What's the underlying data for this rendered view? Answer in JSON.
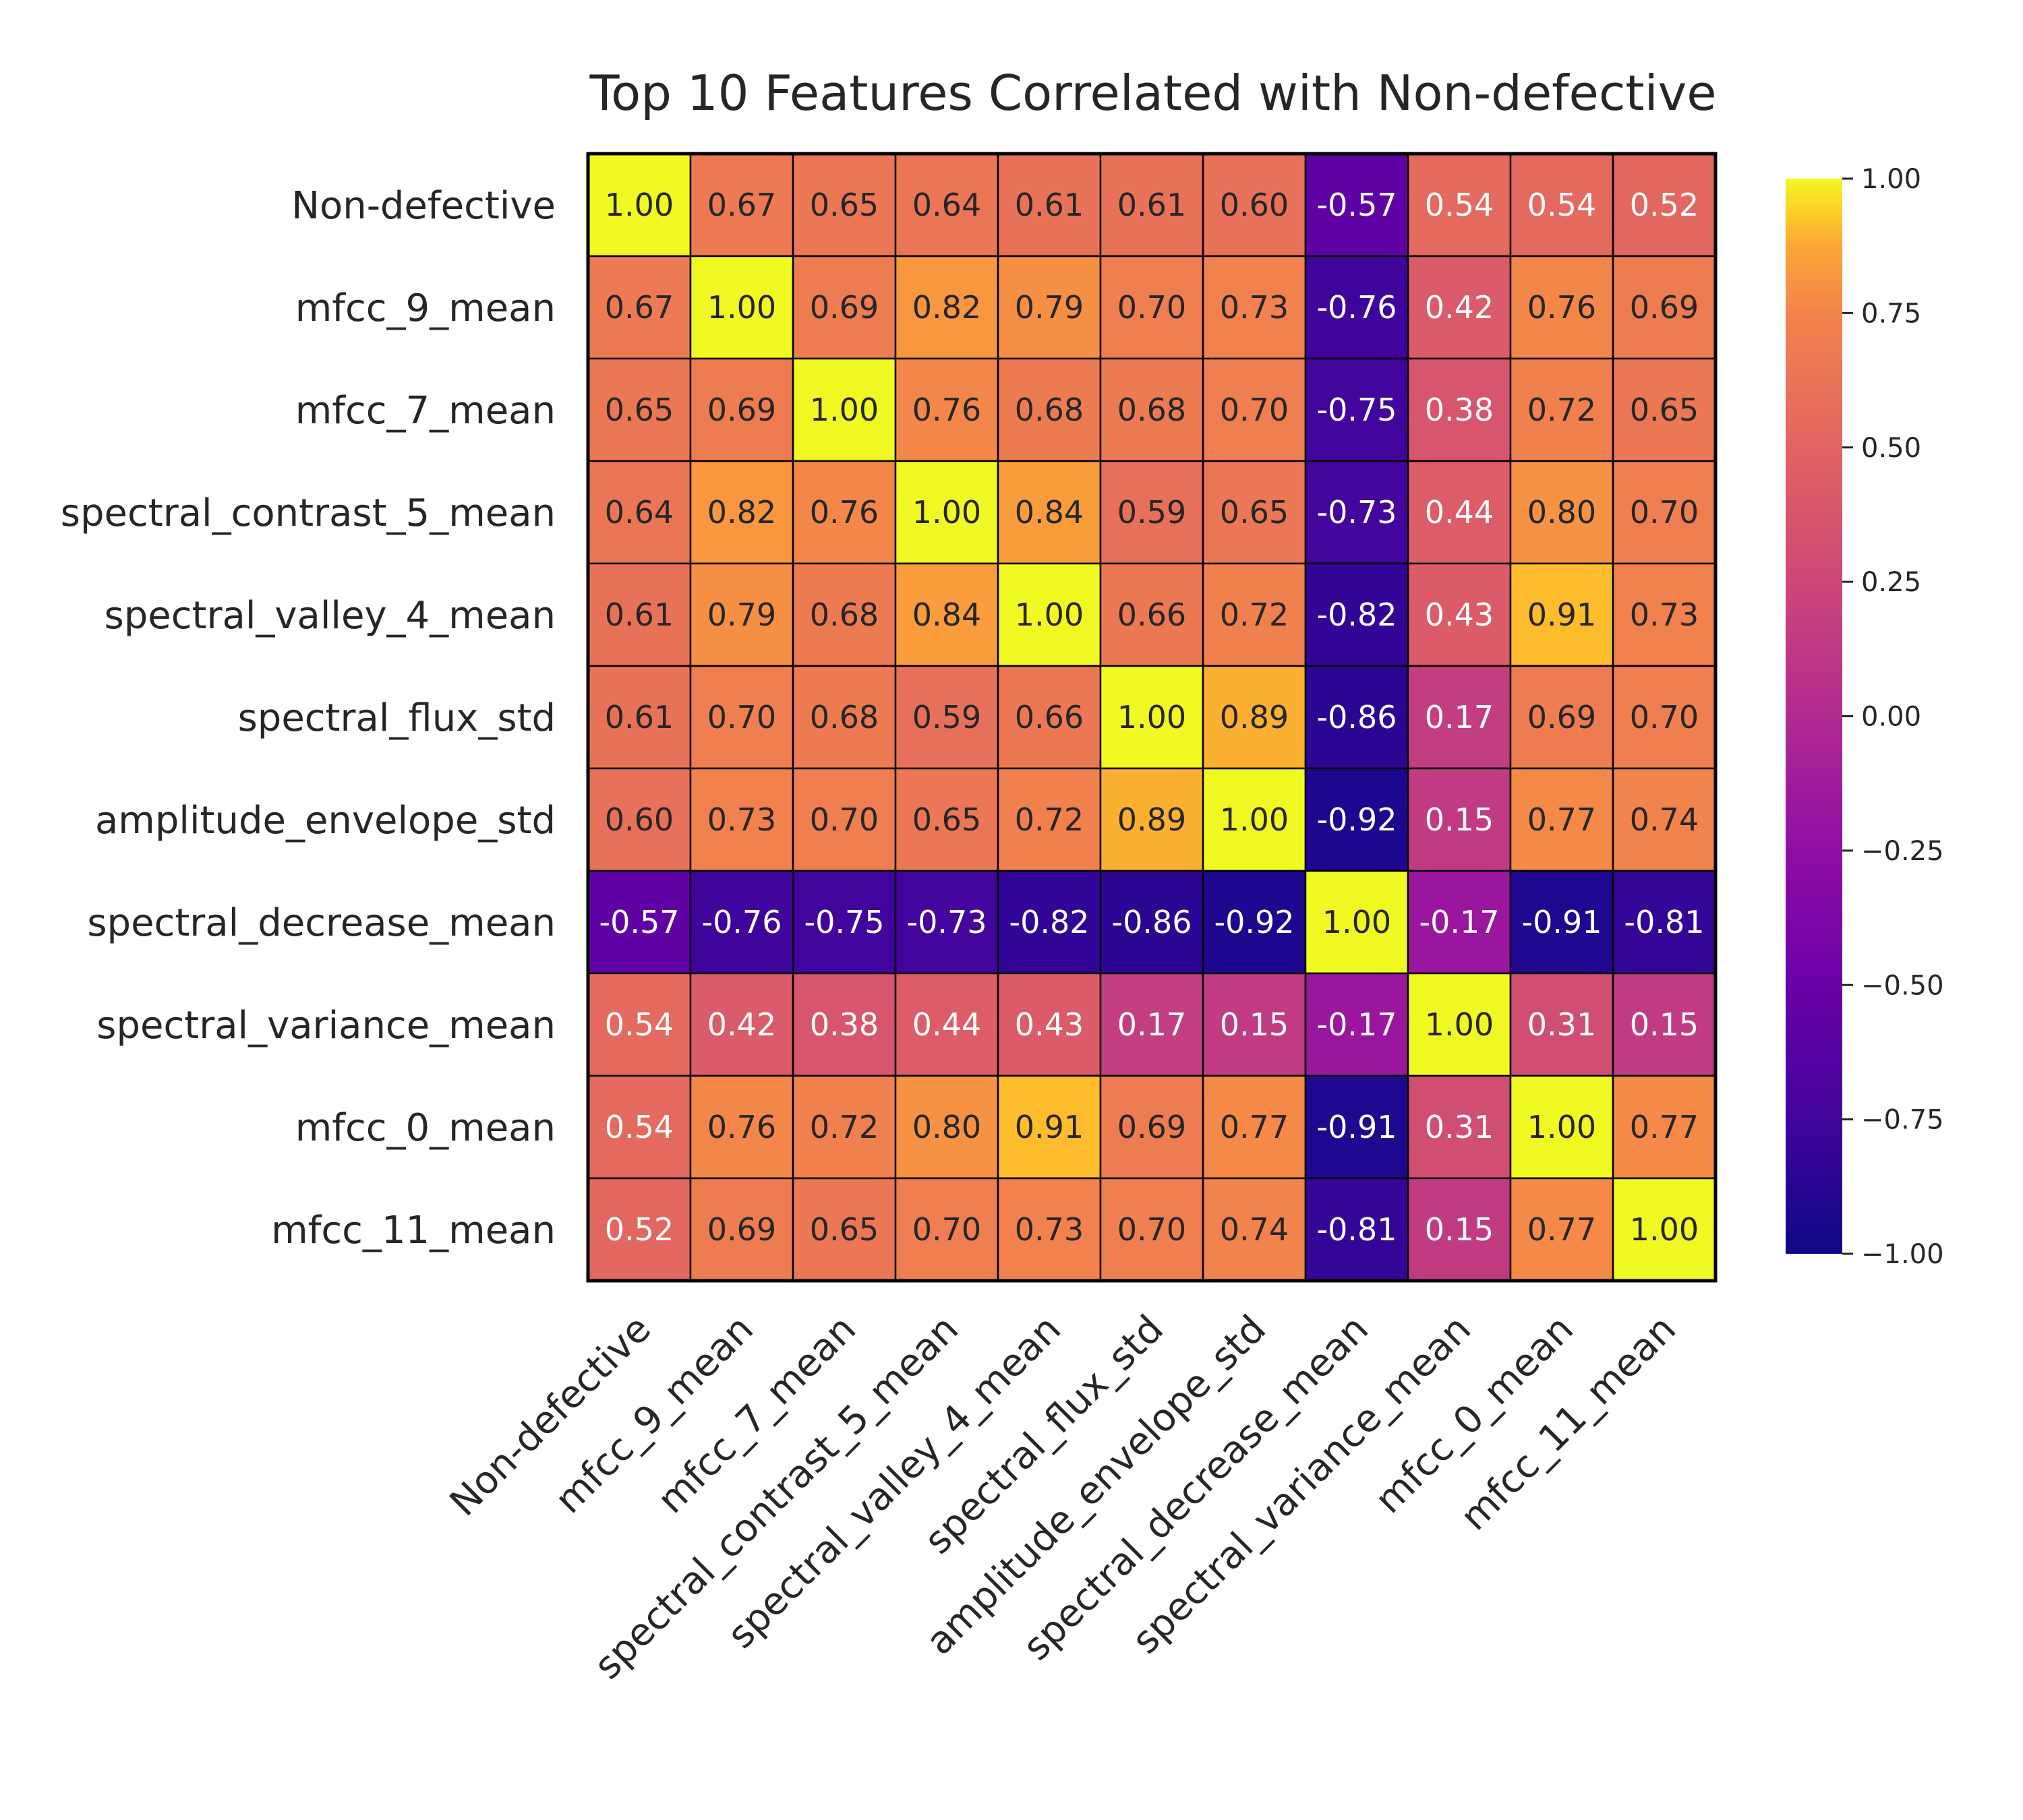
{
  "chart_data": {
    "type": "heatmap",
    "title": "Top 10 Features Correlated with Non-defective",
    "xlabel": "",
    "ylabel": "",
    "colormap": "plasma",
    "vmin": -1.0,
    "vmax": 1.0,
    "grid": true,
    "legend": "colorbar right",
    "labels": [
      "Non-defective",
      "mfcc_9_mean",
      "mfcc_7_mean",
      "spectral_contrast_5_mean",
      "spectral_valley_4_mean",
      "spectral_flux_std",
      "amplitude_envelope_std",
      "spectral_decrease_mean",
      "spectral_variance_mean",
      "mfcc_0_mean",
      "mfcc_11_mean"
    ],
    "values": [
      [
        1.0,
        0.67,
        0.65,
        0.64,
        0.61,
        0.61,
        0.6,
        -0.57,
        0.54,
        0.54,
        0.52
      ],
      [
        0.67,
        1.0,
        0.69,
        0.82,
        0.79,
        0.7,
        0.73,
        -0.76,
        0.42,
        0.76,
        0.69
      ],
      [
        0.65,
        0.69,
        1.0,
        0.76,
        0.68,
        0.68,
        0.7,
        -0.75,
        0.38,
        0.72,
        0.65
      ],
      [
        0.64,
        0.82,
        0.76,
        1.0,
        0.84,
        0.59,
        0.65,
        -0.73,
        0.44,
        0.8,
        0.7
      ],
      [
        0.61,
        0.79,
        0.68,
        0.84,
        1.0,
        0.66,
        0.72,
        -0.82,
        0.43,
        0.91,
        0.73
      ],
      [
        0.61,
        0.7,
        0.68,
        0.59,
        0.66,
        1.0,
        0.89,
        -0.86,
        0.17,
        0.69,
        0.7
      ],
      [
        0.6,
        0.73,
        0.7,
        0.65,
        0.72,
        0.89,
        1.0,
        -0.92,
        0.15,
        0.77,
        0.74
      ],
      [
        -0.57,
        -0.76,
        -0.75,
        -0.73,
        -0.82,
        -0.86,
        -0.92,
        1.0,
        -0.17,
        -0.91,
        -0.81
      ],
      [
        0.54,
        0.42,
        0.38,
        0.44,
        0.43,
        0.17,
        0.15,
        -0.17,
        1.0,
        0.31,
        0.15
      ],
      [
        0.54,
        0.76,
        0.72,
        0.8,
        0.91,
        0.69,
        0.77,
        -0.91,
        0.31,
        1.0,
        0.77
      ],
      [
        0.52,
        0.69,
        0.65,
        0.7,
        0.73,
        0.7,
        0.74,
        -0.81,
        0.15,
        0.77,
        1.0
      ]
    ],
    "colorbar_ticks": [
      "1.00",
      "0.75",
      "0.50",
      "0.25",
      "0.00",
      "−0.25",
      "−0.50",
      "−0.75",
      "−1.00"
    ],
    "colorbar_tick_values": [
      1.0,
      0.75,
      0.5,
      0.25,
      0.0,
      -0.25,
      -0.5,
      -0.75,
      -1.0
    ]
  }
}
